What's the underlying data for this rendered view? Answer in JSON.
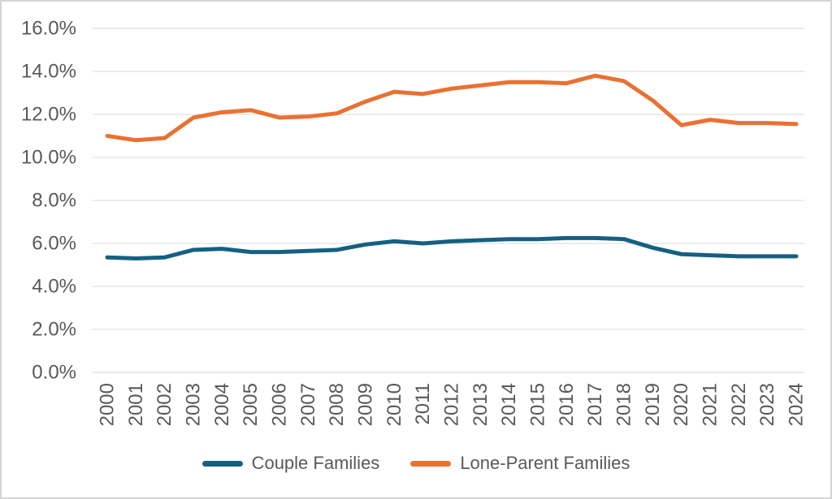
{
  "chart_data": {
    "type": "line",
    "categories": [
      "2000",
      "2001",
      "2002",
      "2003",
      "2004",
      "2005",
      "2006",
      "2007",
      "2008",
      "2009",
      "2010",
      "2011",
      "2012",
      "2013",
      "2014",
      "2015",
      "2016",
      "2017",
      "2018",
      "2019",
      "2020",
      "2021",
      "2022",
      "2023",
      "2024"
    ],
    "series": [
      {
        "name": "Couple Families",
        "color": "#156082",
        "values": [
          5.35,
          5.3,
          5.35,
          5.7,
          5.75,
          5.6,
          5.6,
          5.65,
          5.7,
          5.95,
          6.1,
          6.0,
          6.1,
          6.15,
          6.2,
          6.2,
          6.25,
          6.25,
          6.2,
          5.8,
          5.5,
          5.45,
          5.4,
          5.4,
          5.4
        ]
      },
      {
        "name": "Lone-Parent Families",
        "color": "#E97132",
        "values": [
          11.0,
          10.8,
          10.9,
          11.85,
          12.1,
          12.2,
          11.85,
          11.9,
          12.05,
          12.6,
          13.05,
          12.95,
          13.2,
          13.35,
          13.5,
          13.5,
          13.45,
          13.8,
          13.55,
          12.65,
          11.5,
          11.75,
          11.6,
          11.6,
          11.55
        ]
      }
    ],
    "title": "",
    "xlabel": "",
    "ylabel": "",
    "y_axis": {
      "min": 0,
      "max": 16,
      "step": 2,
      "tick_suffix": "%",
      "tick_decimals": 1
    },
    "ylim": [
      0,
      16
    ],
    "grid": true,
    "legend_position": "bottom",
    "line_width": 5
  },
  "colors": {
    "gridline": "#D9D9D9",
    "axis_text": "#595959",
    "frame_border": "#D5D5D5",
    "background": "#FFFFFF"
  }
}
